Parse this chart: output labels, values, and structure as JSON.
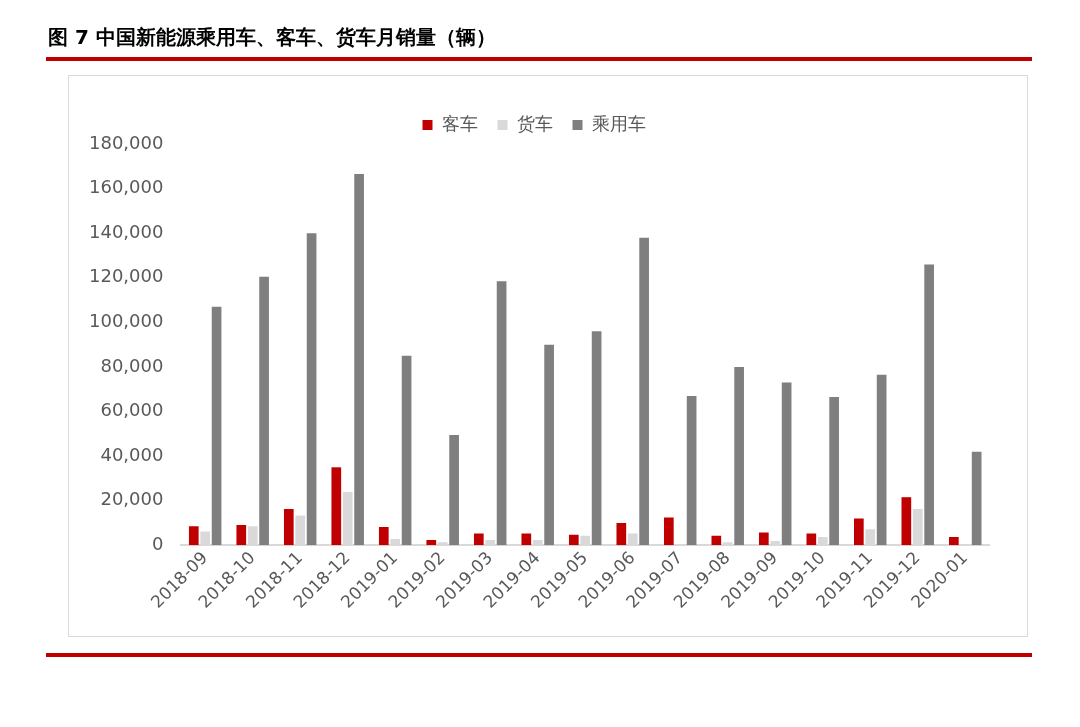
{
  "chart_data": {
    "type": "bar",
    "title": "图 7  中国新能源乘用车、客车、货车月销量（辆）",
    "categories": [
      "2018-09",
      "2018-10",
      "2018-11",
      "2018-12",
      "2019-01",
      "2019-02",
      "2019-03",
      "2019-04",
      "2019-05",
      "2019-06",
      "2019-07",
      "2019-08",
      "2019-09",
      "2019-10",
      "2019-11",
      "2019-12",
      "2020-01"
    ],
    "series": [
      {
        "name": "客车",
        "color": "#c00000",
        "values": [
          8600,
          9100,
          16300,
          35000,
          8200,
          2400,
          5300,
          5300,
          4800,
          10000,
          12500,
          4300,
          5800,
          5300,
          12000,
          21600,
          3800
        ]
      },
      {
        "name": "货车",
        "color": "#d9d9d9",
        "values": [
          6200,
          8600,
          13400,
          24000,
          2900,
          1400,
          2400,
          2400,
          4300,
          5300,
          500,
          1400,
          1900,
          3800,
          7200,
          16300,
          500
        ]
      },
      {
        "name": "乘用车",
        "color": "#7f7f7f",
        "values": [
          107000,
          120500,
          140000,
          166500,
          85000,
          49500,
          118500,
          90000,
          96000,
          138000,
          67000,
          80000,
          73000,
          66500,
          76500,
          126000,
          42000
        ]
      }
    ],
    "ylim": [
      0,
      180000
    ],
    "yticks": [
      0,
      {
        "value": 20000,
        "label": "20,000"
      },
      {
        "value": 40000,
        "label": "40,000"
      },
      {
        "value": 60000,
        "label": "60,000"
      },
      {
        "value": 80000,
        "label": "80,000"
      },
      {
        "value": 100000,
        "label": "100,000"
      },
      {
        "value": 120000,
        "label": "120,000"
      },
      {
        "value": 140000,
        "label": "140,000"
      },
      {
        "value": 160000,
        "label": "160,000"
      },
      {
        "value": 180000,
        "label": "180,000"
      }
    ],
    "grid": false,
    "legend": "top"
  }
}
